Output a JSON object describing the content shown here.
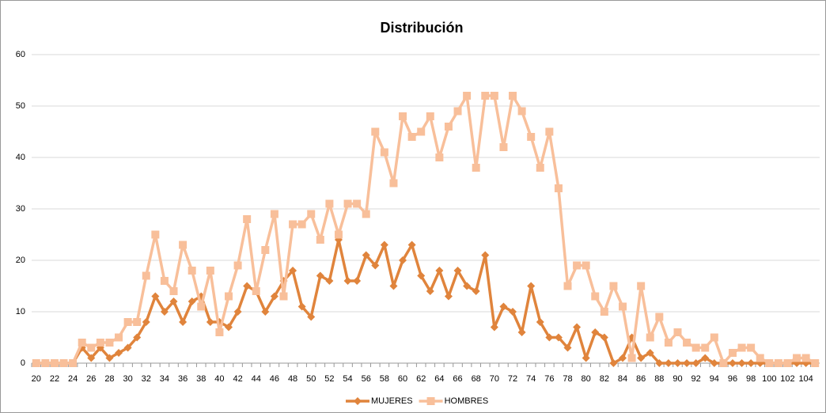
{
  "chart_data": {
    "type": "line",
    "title": "Distribución",
    "categories": [
      20,
      null,
      22,
      null,
      24,
      null,
      26,
      null,
      28,
      null,
      30,
      null,
      32,
      null,
      34,
      null,
      36,
      null,
      38,
      null,
      40,
      null,
      42,
      null,
      44,
      null,
      46,
      null,
      48,
      null,
      50,
      null,
      52,
      null,
      54,
      null,
      56,
      null,
      58,
      null,
      60,
      null,
      62,
      null,
      64,
      null,
      66,
      null,
      68,
      null,
      70,
      null,
      72,
      null,
      74,
      null,
      76,
      null,
      78,
      null,
      80,
      null,
      82,
      null,
      84,
      null,
      86,
      null,
      88,
      null,
      90,
      null,
      92,
      null,
      94,
      null,
      96,
      null,
      98,
      null,
      100,
      null,
      102,
      null,
      104,
      null
    ],
    "series": [
      {
        "name": "MUJERES",
        "color": "#e0843c",
        "marker": "diamond",
        "values": [
          0,
          0,
          0,
          0,
          0,
          3,
          1,
          3,
          1,
          2,
          3,
          5,
          8,
          13,
          10,
          12,
          8,
          12,
          13,
          8,
          8,
          7,
          10,
          15,
          14,
          10,
          13,
          16,
          18,
          11,
          9,
          17,
          16,
          24,
          16,
          16,
          21,
          19,
          23,
          15,
          20,
          23,
          17,
          14,
          18,
          13,
          18,
          15,
          14,
          21,
          7,
          11,
          10,
          6,
          15,
          8,
          5,
          5,
          3,
          7,
          1,
          6,
          5,
          0,
          1,
          5,
          1,
          2,
          0,
          0,
          0,
          0,
          0,
          1,
          0,
          0,
          0,
          0,
          0,
          0,
          0,
          0,
          0,
          0,
          0,
          0
        ]
      },
      {
        "name": "HOMBRES",
        "color": "#f8bf9a",
        "marker": "square",
        "values": [
          0,
          0,
          0,
          0,
          0,
          4,
          3,
          4,
          4,
          5,
          8,
          8,
          17,
          25,
          16,
          14,
          23,
          18,
          11,
          18,
          6,
          13,
          19,
          28,
          14,
          22,
          29,
          13,
          27,
          27,
          29,
          24,
          31,
          25,
          31,
          31,
          29,
          45,
          41,
          35,
          48,
          44,
          45,
          48,
          40,
          46,
          49,
          52,
          38,
          52,
          52,
          42,
          52,
          49,
          44,
          38,
          45,
          34,
          15,
          19,
          19,
          13,
          10,
          15,
          11,
          1,
          15,
          5,
          9,
          4,
          6,
          4,
          3,
          3,
          5,
          0,
          2,
          3,
          3,
          1,
          0,
          0,
          0,
          1,
          1,
          0
        ]
      }
    ],
    "ylim": [
      0,
      60
    ],
    "yticks": [
      0,
      10,
      20,
      30,
      40,
      50,
      60
    ],
    "grid": true,
    "legend": "bottom"
  }
}
